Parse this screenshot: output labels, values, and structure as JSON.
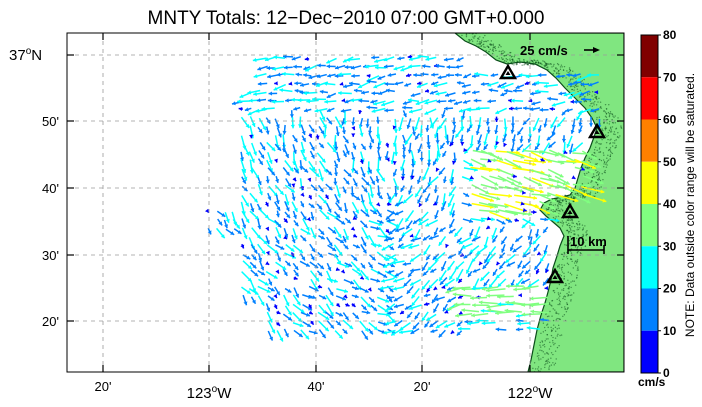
{
  "title": "MNTY Totals: 12−Dec−2010 07:00 GMT+0.000",
  "lat_labels": [
    {
      "deg": "37",
      "min": "",
      "suffix": "N"
    },
    {
      "deg": "",
      "min": "50'",
      "suffix": ""
    },
    {
      "deg": "",
      "min": "40'",
      "suffix": ""
    },
    {
      "deg": "",
      "min": "30'",
      "suffix": ""
    },
    {
      "deg": "",
      "min": "20'",
      "suffix": ""
    }
  ],
  "lon_labels": [
    {
      "deg": "",
      "min": "20'",
      "suffix": ""
    },
    {
      "deg": "123",
      "min": "",
      "suffix": "W"
    },
    {
      "deg": "",
      "min": "40'",
      "suffix": ""
    },
    {
      "deg": "",
      "min": "20'",
      "suffix": ""
    },
    {
      "deg": "122",
      "min": "",
      "suffix": "W"
    }
  ],
  "reference_vector": {
    "label": "25 cm/s",
    "speed_cm_s": 25
  },
  "scale_bar": {
    "label": "10 km",
    "length_km": 10
  },
  "colorbar": {
    "ticks": [
      "80",
      "70",
      "60",
      "50",
      "40",
      "30",
      "20",
      "10",
      "0"
    ],
    "unit": "cm/s",
    "note": "NOTE: Data outside color range will be saturated.",
    "colors": [
      "#800000",
      "#ff0000",
      "#ff8000",
      "#ffff00",
      "#80ff80",
      "#00ffff",
      "#0080ff",
      "#0000ff"
    ]
  },
  "colors": {
    "land": "#80e680",
    "coast": "#0a4d1a",
    "grid": "#9a9a9a"
  },
  "stations": [
    {
      "name": "station-1"
    },
    {
      "name": "station-2"
    },
    {
      "name": "station-3"
    },
    {
      "name": "station-4"
    }
  ]
}
